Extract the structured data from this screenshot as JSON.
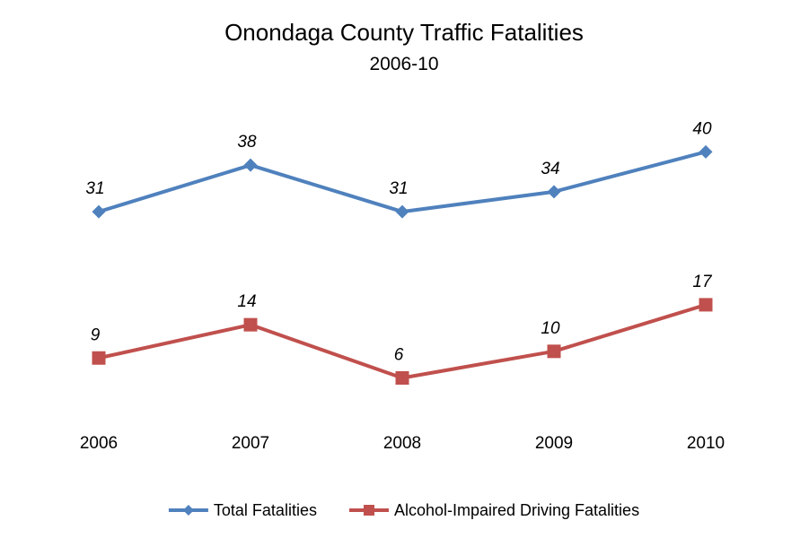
{
  "chart_data": {
    "type": "line",
    "title": "Onondaga County Traffic Fatalities",
    "subtitle": "2006-10",
    "categories": [
      "2006",
      "2007",
      "2008",
      "2009",
      "2010"
    ],
    "series": [
      {
        "name": "Total Fatalities",
        "values": [
          31,
          38,
          31,
          34,
          40
        ],
        "color": "#4f81bd",
        "marker": "diamond"
      },
      {
        "name": "Alcohol-Impaired Driving Fatalities",
        "values": [
          9,
          14,
          6,
          10,
          17
        ],
        "color": "#c0504d",
        "marker": "square"
      }
    ],
    "ylim": [
      0,
      48
    ],
    "grid": false,
    "y_axis_visible": false,
    "data_labels": true,
    "legend_position": "bottom"
  }
}
